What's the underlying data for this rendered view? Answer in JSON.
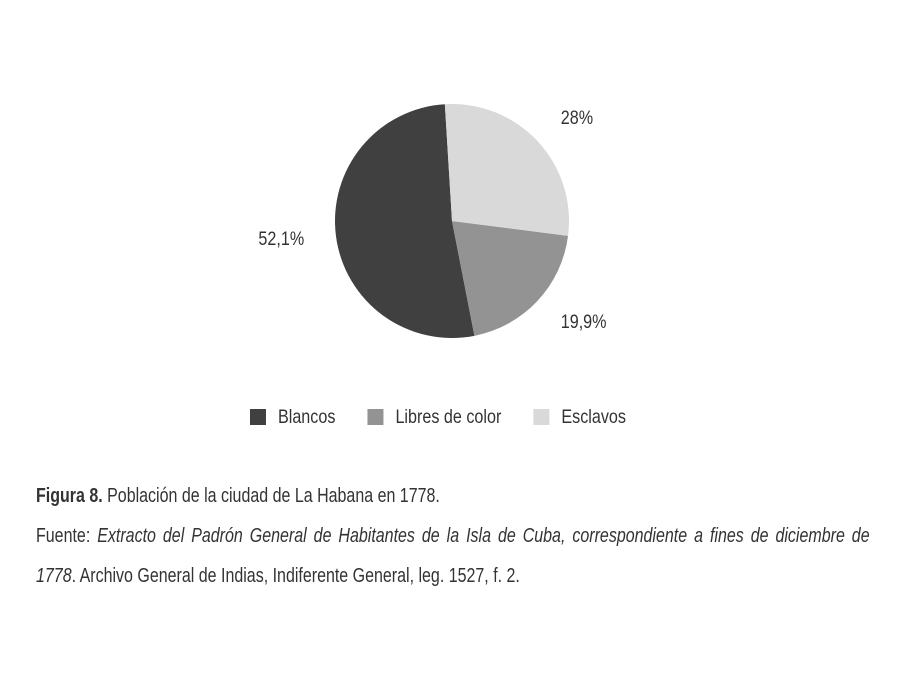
{
  "chart_data": {
    "type": "pie",
    "categories": [
      "Blancos",
      "Libres de color",
      "Esclavos"
    ],
    "values": [
      52.1,
      19.9,
      28
    ],
    "value_labels": [
      "52,1%",
      "19,9%",
      "28%"
    ],
    "colors": [
      "#404040",
      "#939393",
      "#d9d9d9"
    ],
    "legend": "bottom"
  },
  "caption": {
    "label": "Figura 8.",
    "title": "Población de la ciudad de La Habana en 1778."
  },
  "source": {
    "label": "Fuente:",
    "title": "Extracto del Padrón General de Habitantes de la Isla de Cuba, correspondiente a fines de diciembre de 1778",
    "rest": ". Archivo General de Indias, Indiferente General, leg. 1527, f. 2."
  }
}
